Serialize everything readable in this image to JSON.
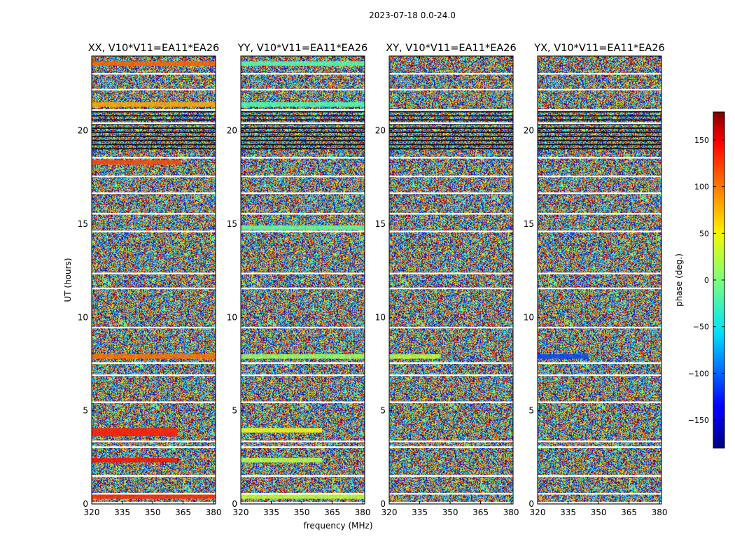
{
  "chart_data": {
    "type": "heatmap",
    "suptitle": "2023-07-18 0.0-24.0",
    "xlabel": "frequency (MHz)",
    "ylabel": "UT (hours)",
    "xlim": [
      320,
      381
    ],
    "ylim": [
      0,
      24
    ],
    "x_ticks": [
      320,
      335,
      350,
      365,
      380
    ],
    "y_ticks": [
      0,
      5,
      10,
      15,
      20
    ],
    "panels": [
      {
        "title": "XX, V10*V11=EA11*EA26",
        "coherent_bands": [
          {
            "t": 0.4,
            "phase": 120,
            "f_end": 381
          },
          {
            "t": 2.35,
            "phase": 130,
            "f_end": 362
          },
          {
            "t": 3.75,
            "phase": 125,
            "f_end": 362
          },
          {
            "t": 3.95,
            "phase": 125,
            "f_end": 362
          },
          {
            "t": 7.9,
            "phase": 95,
            "f_end": 381
          },
          {
            "t": 18.3,
            "phase": 110,
            "f_end": 364
          },
          {
            "t": 21.4,
            "phase": 75,
            "f_end": 381
          },
          {
            "t": 23.6,
            "phase": 100,
            "f_end": 381
          }
        ]
      },
      {
        "title": "YY, V10*V11=EA11*EA26",
        "coherent_bands": [
          {
            "t": 0.4,
            "phase": 25,
            "f_end": 381
          },
          {
            "t": 2.35,
            "phase": 20,
            "f_end": 360
          },
          {
            "t": 3.95,
            "phase": 40,
            "f_end": 360
          },
          {
            "t": 7.9,
            "phase": 10,
            "f_end": 381
          },
          {
            "t": 14.8,
            "phase": -10,
            "f_end": 381
          },
          {
            "t": 21.4,
            "phase": -20,
            "f_end": 381
          },
          {
            "t": 23.6,
            "phase": -15,
            "f_end": 381
          }
        ]
      },
      {
        "title": "XY, V10*V11=EA11*EA26",
        "coherent_bands": [
          {
            "t": 7.9,
            "phase": 20,
            "f_end": 345
          }
        ]
      },
      {
        "title": "YX, V10*V11=EA11*EA26",
        "coherent_bands": [
          {
            "t": 7.9,
            "phase": -110,
            "f_end": 345
          }
        ]
      }
    ],
    "gap_hours": [
      0.07,
      0.55,
      1.5,
      3.05,
      3.35,
      5.45,
      6.9,
      7.55,
      9.45,
      11.55,
      12.35,
      14.6,
      15.55,
      16.65,
      17.55,
      18.55,
      20.4,
      21.1,
      22.2,
      23.05
    ],
    "colorbar": {
      "label": "phase (deg.)",
      "range": [
        -180,
        180
      ],
      "ticks": [
        -150,
        -100,
        -50,
        0,
        50,
        100,
        150
      ],
      "tick_labels": [
        "−150",
        "−100",
        "−50",
        "0",
        "50",
        "100",
        "150"
      ],
      "colormap": "jet"
    }
  }
}
